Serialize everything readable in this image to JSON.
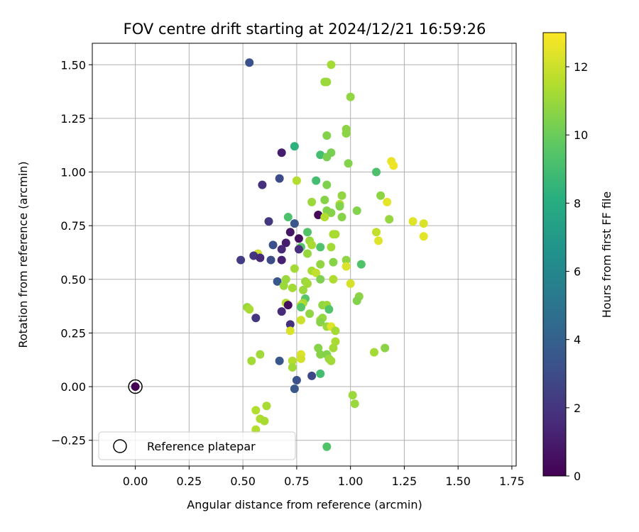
{
  "chart_data": {
    "type": "scatter",
    "title": "FOV centre drift starting at 2024/12/21 16:59:26",
    "xlabel": "Angular distance from reference (arcmin)",
    "ylabel": "Rotation from reference (arcmin)",
    "xlim": [
      -0.2,
      1.77
    ],
    "ylim": [
      -0.37,
      1.6
    ],
    "xticks": [
      "0.00",
      "0.25",
      "0.50",
      "0.75",
      "1.00",
      "1.25",
      "1.50",
      "1.75"
    ],
    "xtick_values": [
      0,
      0.25,
      0.5,
      0.75,
      1.0,
      1.25,
      1.5,
      1.75
    ],
    "yticks": [
      "1.50",
      "1.25",
      "1.00",
      "0.75",
      "0.50",
      "0.25",
      "0.00",
      "−0.25"
    ],
    "ytick_values": [
      1.5,
      1.25,
      1.0,
      0.75,
      0.5,
      0.25,
      0,
      -0.25
    ],
    "grid": true,
    "colormap": "viridis",
    "colorbar": {
      "label": "Hours from first FF file",
      "range": [
        0,
        13
      ],
      "ticks": [
        "0",
        "2",
        "4",
        "6",
        "8",
        "10",
        "12"
      ],
      "tick_values": [
        0,
        2,
        4,
        6,
        8,
        10,
        12
      ]
    },
    "legend": {
      "placement": "lower-left",
      "label": "Reference platepar"
    },
    "reference_point": {
      "x": 0,
      "y": 0,
      "hours": 0
    },
    "points": [
      {
        "x": 0.53,
        "y": 1.51,
        "h": 3.2
      },
      {
        "x": 0.91,
        "y": 1.5,
        "h": 11.2
      },
      {
        "x": 0.89,
        "y": 1.42,
        "h": 11.0
      },
      {
        "x": 0.88,
        "y": 1.42,
        "h": 11.0
      },
      {
        "x": 1.0,
        "y": 1.35,
        "h": 10.8
      },
      {
        "x": 0.98,
        "y": 1.2,
        "h": 10.7
      },
      {
        "x": 0.98,
        "y": 1.18,
        "h": 10.7
      },
      {
        "x": 0.89,
        "y": 1.17,
        "h": 10.5
      },
      {
        "x": 0.74,
        "y": 1.12,
        "h": 8.3
      },
      {
        "x": 0.68,
        "y": 1.09,
        "h": 1.0
      },
      {
        "x": 0.91,
        "y": 1.09,
        "h": 10.3
      },
      {
        "x": 0.86,
        "y": 1.08,
        "h": 9.0
      },
      {
        "x": 0.89,
        "y": 1.07,
        "h": 10.3
      },
      {
        "x": 0.99,
        "y": 1.04,
        "h": 10.5
      },
      {
        "x": 1.19,
        "y": 1.05,
        "h": 12.6
      },
      {
        "x": 1.2,
        "y": 1.03,
        "h": 12.7
      },
      {
        "x": 1.12,
        "y": 1.0,
        "h": 9.2
      },
      {
        "x": 0.67,
        "y": 0.97,
        "h": 3.0
      },
      {
        "x": 0.75,
        "y": 0.96,
        "h": 11.5
      },
      {
        "x": 0.84,
        "y": 0.96,
        "h": 9.0
      },
      {
        "x": 0.89,
        "y": 0.94,
        "h": 10.4
      },
      {
        "x": 0.59,
        "y": 0.94,
        "h": 1.8
      },
      {
        "x": 0.96,
        "y": 0.89,
        "h": 10.8
      },
      {
        "x": 1.14,
        "y": 0.89,
        "h": 10.7
      },
      {
        "x": 0.88,
        "y": 0.87,
        "h": 10.6
      },
      {
        "x": 0.82,
        "y": 0.86,
        "h": 11.0
      },
      {
        "x": 1.17,
        "y": 0.86,
        "h": 12.5
      },
      {
        "x": 0.95,
        "y": 0.85,
        "h": 11.4
      },
      {
        "x": 0.95,
        "y": 0.84,
        "h": 10.5
      },
      {
        "x": 0.89,
        "y": 0.82,
        "h": 10.5
      },
      {
        "x": 0.91,
        "y": 0.81,
        "h": 10.6
      },
      {
        "x": 1.03,
        "y": 0.82,
        "h": 10.5
      },
      {
        "x": 0.71,
        "y": 0.79,
        "h": 9.2
      },
      {
        "x": 0.85,
        "y": 0.8,
        "h": 0.3
      },
      {
        "x": 0.88,
        "y": 0.79,
        "h": 11.5
      },
      {
        "x": 0.96,
        "y": 0.79,
        "h": 10.6
      },
      {
        "x": 1.18,
        "y": 0.78,
        "h": 10.9
      },
      {
        "x": 0.62,
        "y": 0.77,
        "h": 2.0
      },
      {
        "x": 1.29,
        "y": 0.77,
        "h": 12.4
      },
      {
        "x": 1.34,
        "y": 0.76,
        "h": 12.3
      },
      {
        "x": 0.74,
        "y": 0.76,
        "h": 3.5
      },
      {
        "x": 1.12,
        "y": 0.72,
        "h": 11.8
      },
      {
        "x": 0.8,
        "y": 0.72,
        "h": 9.4
      },
      {
        "x": 0.92,
        "y": 0.71,
        "h": 11.3
      },
      {
        "x": 0.93,
        "y": 0.71,
        "h": 11.3
      },
      {
        "x": 0.72,
        "y": 0.72,
        "h": 0.8
      },
      {
        "x": 0.76,
        "y": 0.69,
        "h": 0.5
      },
      {
        "x": 1.34,
        "y": 0.7,
        "h": 12.5
      },
      {
        "x": 0.81,
        "y": 0.68,
        "h": 11.0
      },
      {
        "x": 0.7,
        "y": 0.67,
        "h": 1.0
      },
      {
        "x": 1.13,
        "y": 0.68,
        "h": 12.4
      },
      {
        "x": 0.82,
        "y": 0.66,
        "h": 11.3
      },
      {
        "x": 0.64,
        "y": 0.66,
        "h": 3.2
      },
      {
        "x": 0.91,
        "y": 0.65,
        "h": 11.2
      },
      {
        "x": 0.86,
        "y": 0.65,
        "h": 9.3
      },
      {
        "x": 0.77,
        "y": 0.65,
        "h": 9.5
      },
      {
        "x": 0.76,
        "y": 0.64,
        "h": 1.7
      },
      {
        "x": 0.68,
        "y": 0.64,
        "h": 1.5
      },
      {
        "x": 0.8,
        "y": 0.62,
        "h": 10.9
      },
      {
        "x": 0.57,
        "y": 0.62,
        "h": 12.0
      },
      {
        "x": 0.55,
        "y": 0.61,
        "h": 2.0
      },
      {
        "x": 0.58,
        "y": 0.6,
        "h": 1.5
      },
      {
        "x": 0.68,
        "y": 0.59,
        "h": 1.2
      },
      {
        "x": 0.63,
        "y": 0.59,
        "h": 3.0
      },
      {
        "x": 0.49,
        "y": 0.59,
        "h": 2.3
      },
      {
        "x": 0.98,
        "y": 0.59,
        "h": 10.8
      },
      {
        "x": 0.92,
        "y": 0.58,
        "h": 10.6
      },
      {
        "x": 0.86,
        "y": 0.57,
        "h": 10.8
      },
      {
        "x": 1.05,
        "y": 0.57,
        "h": 9.3
      },
      {
        "x": 0.98,
        "y": 0.56,
        "h": 12.3
      },
      {
        "x": 0.74,
        "y": 0.55,
        "h": 11.2
      },
      {
        "x": 0.82,
        "y": 0.54,
        "h": 11.3
      },
      {
        "x": 0.84,
        "y": 0.53,
        "h": 11.8
      },
      {
        "x": 0.7,
        "y": 0.5,
        "h": 11.0
      },
      {
        "x": 0.79,
        "y": 0.49,
        "h": 11.0
      },
      {
        "x": 0.86,
        "y": 0.5,
        "h": 10.4
      },
      {
        "x": 0.92,
        "y": 0.5,
        "h": 11.4
      },
      {
        "x": 0.66,
        "y": 0.49,
        "h": 3.5
      },
      {
        "x": 0.8,
        "y": 0.48,
        "h": 11.2
      },
      {
        "x": 1.0,
        "y": 0.48,
        "h": 12.2
      },
      {
        "x": 0.69,
        "y": 0.47,
        "h": 11.0
      },
      {
        "x": 0.73,
        "y": 0.46,
        "h": 11.2
      },
      {
        "x": 0.78,
        "y": 0.45,
        "h": 11.0
      },
      {
        "x": 1.04,
        "y": 0.42,
        "h": 10.7
      },
      {
        "x": 0.79,
        "y": 0.41,
        "h": 9.5
      },
      {
        "x": 1.03,
        "y": 0.4,
        "h": 10.5
      },
      {
        "x": 0.7,
        "y": 0.39,
        "h": 11.5
      },
      {
        "x": 0.78,
        "y": 0.39,
        "h": 11.2
      },
      {
        "x": 0.77,
        "y": 0.38,
        "h": 11.6
      },
      {
        "x": 0.87,
        "y": 0.38,
        "h": 10.8
      },
      {
        "x": 0.89,
        "y": 0.38,
        "h": 11.0
      },
      {
        "x": 0.71,
        "y": 0.38,
        "h": 0.5
      },
      {
        "x": 0.52,
        "y": 0.37,
        "h": 11.0
      },
      {
        "x": 0.53,
        "y": 0.36,
        "h": 11.3
      },
      {
        "x": 0.77,
        "y": 0.37,
        "h": 9.6
      },
      {
        "x": 0.9,
        "y": 0.36,
        "h": 9.4
      },
      {
        "x": 0.68,
        "y": 0.35,
        "h": 1.5
      },
      {
        "x": 0.81,
        "y": 0.34,
        "h": 10.8
      },
      {
        "x": 0.56,
        "y": 0.32,
        "h": 2.0
      },
      {
        "x": 0.86,
        "y": 0.31,
        "h": 11.2
      },
      {
        "x": 0.87,
        "y": 0.32,
        "h": 10.9
      },
      {
        "x": 0.77,
        "y": 0.31,
        "h": 12.0
      },
      {
        "x": 0.86,
        "y": 0.3,
        "h": 10.6
      },
      {
        "x": 0.72,
        "y": 0.29,
        "h": 1.8
      },
      {
        "x": 0.89,
        "y": 0.28,
        "h": 11.0
      },
      {
        "x": 0.91,
        "y": 0.28,
        "h": 12.4
      },
      {
        "x": 0.93,
        "y": 0.26,
        "h": 11.2
      },
      {
        "x": 0.72,
        "y": 0.26,
        "h": 12.3
      },
      {
        "x": 0.93,
        "y": 0.21,
        "h": 11.3
      },
      {
        "x": 0.85,
        "y": 0.18,
        "h": 10.6
      },
      {
        "x": 0.92,
        "y": 0.18,
        "h": 11.2
      },
      {
        "x": 1.16,
        "y": 0.18,
        "h": 10.7
      },
      {
        "x": 1.11,
        "y": 0.16,
        "h": 11.2
      },
      {
        "x": 0.86,
        "y": 0.15,
        "h": 10.6
      },
      {
        "x": 0.89,
        "y": 0.15,
        "h": 10.5
      },
      {
        "x": 0.77,
        "y": 0.15,
        "h": 12.3
      },
      {
        "x": 0.58,
        "y": 0.15,
        "h": 11.1
      },
      {
        "x": 0.77,
        "y": 0.13,
        "h": 12.1
      },
      {
        "x": 0.9,
        "y": 0.13,
        "h": 11.0
      },
      {
        "x": 0.91,
        "y": 0.12,
        "h": 11.1
      },
      {
        "x": 0.54,
        "y": 0.12,
        "h": 11.2
      },
      {
        "x": 0.73,
        "y": 0.12,
        "h": 11.5
      },
      {
        "x": 0.67,
        "y": 0.12,
        "h": 3.5
      },
      {
        "x": 0.73,
        "y": 0.09,
        "h": 11.1
      },
      {
        "x": 0.86,
        "y": 0.06,
        "h": 9.0
      },
      {
        "x": 0.82,
        "y": 0.05,
        "h": 2.8
      },
      {
        "x": 0.75,
        "y": 0.03,
        "h": 3.2
      },
      {
        "x": 0.74,
        "y": -0.01,
        "h": 3.5
      },
      {
        "x": 1.01,
        "y": -0.04,
        "h": 11.0
      },
      {
        "x": 1.02,
        "y": -0.08,
        "h": 11.0
      },
      {
        "x": 0.61,
        "y": -0.09,
        "h": 11.3
      },
      {
        "x": 0.56,
        "y": -0.11,
        "h": 11.5
      },
      {
        "x": 0.58,
        "y": -0.15,
        "h": 11.4
      },
      {
        "x": 0.6,
        "y": -0.16,
        "h": 11.3
      },
      {
        "x": 0.56,
        "y": -0.2,
        "h": 11.5
      },
      {
        "x": 0.89,
        "y": -0.28,
        "h": 9.3
      }
    ]
  }
}
